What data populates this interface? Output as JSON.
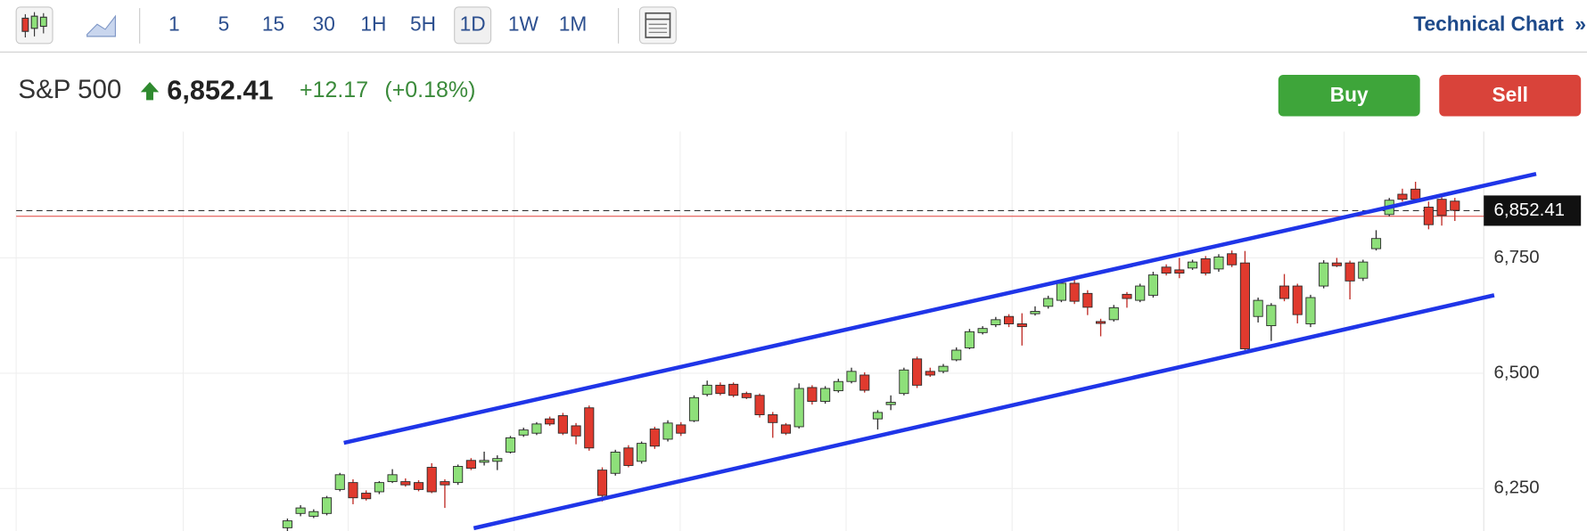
{
  "toolbar": {
    "intervals": [
      "1",
      "5",
      "15",
      "30",
      "1H",
      "5H",
      "1D",
      "1W",
      "1M"
    ],
    "active_interval": "1D",
    "right_link": "Technical Chart",
    "right_arrow": "»"
  },
  "header": {
    "symbol": "S&P 500",
    "price": "6,852.41",
    "change": "+12.17",
    "change_pct": "(+0.18%)",
    "buy": "Buy",
    "sell": "Sell"
  },
  "chart_data": {
    "type": "candlestick",
    "up_color": "#8ee07a",
    "down_color": "#e03a2e",
    "candles": [
      [
        6165,
        6185,
        6158,
        6180
      ],
      [
        6196,
        6214,
        6190,
        6208
      ],
      [
        6190,
        6205,
        6186,
        6200
      ],
      [
        6196,
        6234,
        6192,
        6230
      ],
      [
        6248,
        6284,
        6244,
        6280
      ],
      [
        6263,
        6270,
        6216,
        6230
      ],
      [
        6240,
        6246,
        6224,
        6228
      ],
      [
        6243,
        6266,
        6238,
        6263
      ],
      [
        6265,
        6292,
        6262,
        6280
      ],
      [
        6265,
        6272,
        6254,
        6258
      ],
      [
        6263,
        6268,
        6244,
        6248
      ],
      [
        6296,
        6305,
        6240,
        6243
      ],
      [
        6265,
        6270,
        6208,
        6258
      ],
      [
        6263,
        6302,
        6258,
        6298
      ],
      [
        6311,
        6316,
        6290,
        6294
      ],
      [
        6307,
        6330,
        6300,
        6311
      ],
      [
        6309,
        6322,
        6290,
        6315
      ],
      [
        6329,
        6364,
        6326,
        6360
      ],
      [
        6366,
        6382,
        6362,
        6377
      ],
      [
        6370,
        6394,
        6366,
        6390
      ],
      [
        6401,
        6406,
        6386,
        6390
      ],
      [
        6408,
        6414,
        6366,
        6370
      ],
      [
        6386,
        6392,
        6346,
        6364
      ],
      [
        6425,
        6430,
        6332,
        6338
      ],
      [
        6290,
        6296,
        6222,
        6235
      ],
      [
        6283,
        6334,
        6278,
        6329
      ],
      [
        6338,
        6344,
        6296,
        6300
      ],
      [
        6309,
        6352,
        6304,
        6348
      ],
      [
        6379,
        6384,
        6336,
        6342
      ],
      [
        6357,
        6398,
        6352,
        6392
      ],
      [
        6388,
        6394,
        6364,
        6370
      ],
      [
        6397,
        6452,
        6394,
        6447
      ],
      [
        6454,
        6484,
        6450,
        6474
      ],
      [
        6474,
        6480,
        6452,
        6456
      ],
      [
        6476,
        6480,
        6448,
        6452
      ],
      [
        6456,
        6460,
        6444,
        6447
      ],
      [
        6452,
        6456,
        6404,
        6410
      ],
      [
        6410,
        6416,
        6360,
        6393
      ],
      [
        6388,
        6392,
        6366,
        6370
      ],
      [
        6384,
        6478,
        6380,
        6467
      ],
      [
        6469,
        6474,
        6432,
        6439
      ],
      [
        6439,
        6472,
        6434,
        6467
      ],
      [
        6462,
        6488,
        6458,
        6482
      ],
      [
        6482,
        6512,
        6478,
        6504
      ],
      [
        6496,
        6502,
        6458,
        6463
      ],
      [
        6401,
        6420,
        6378,
        6415
      ],
      [
        6432,
        6452,
        6420,
        6437
      ],
      [
        6456,
        6512,
        6452,
        6507
      ],
      [
        6531,
        6536,
        6468,
        6474
      ],
      [
        6504,
        6512,
        6492,
        6496
      ],
      [
        6504,
        6520,
        6500,
        6515
      ],
      [
        6529,
        6556,
        6526,
        6550
      ],
      [
        6555,
        6596,
        6552,
        6590
      ],
      [
        6588,
        6602,
        6584,
        6597
      ],
      [
        6605,
        6622,
        6600,
        6616
      ],
      [
        6623,
        6628,
        6600,
        6607
      ],
      [
        6607,
        6630,
        6560,
        6601
      ],
      [
        6629,
        6645,
        6625,
        6634
      ],
      [
        6645,
        6668,
        6640,
        6662
      ],
      [
        6658,
        6702,
        6654,
        6695
      ],
      [
        6695,
        6704,
        6650,
        6656
      ],
      [
        6673,
        6680,
        6626,
        6643
      ],
      [
        6612,
        6618,
        6580,
        6608
      ],
      [
        6616,
        6648,
        6612,
        6642
      ],
      [
        6671,
        6676,
        6642,
        6662
      ],
      [
        6658,
        6694,
        6654,
        6689
      ],
      [
        6669,
        6720,
        6664,
        6713
      ],
      [
        6730,
        6736,
        6712,
        6717
      ],
      [
        6724,
        6750,
        6706,
        6717
      ],
      [
        6728,
        6746,
        6724,
        6741
      ],
      [
        6748,
        6754,
        6712,
        6717
      ],
      [
        6726,
        6758,
        6720,
        6752
      ],
      [
        6759,
        6766,
        6730,
        6735
      ],
      [
        6739,
        6765,
        6550,
        6553
      ],
      [
        6623,
        6664,
        6610,
        6658
      ],
      [
        6603,
        6652,
        6570,
        6647
      ],
      [
        6689,
        6715,
        6656,
        6662
      ],
      [
        6689,
        6694,
        6608,
        6627
      ],
      [
        6607,
        6670,
        6600,
        6664
      ],
      [
        6689,
        6745,
        6684,
        6739
      ],
      [
        6739,
        6750,
        6730,
        6733
      ],
      [
        6739,
        6744,
        6660,
        6700
      ],
      [
        6706,
        6746,
        6700,
        6741
      ],
      [
        6770,
        6810,
        6766,
        6792
      ],
      [
        6844,
        6880,
        6840,
        6875
      ],
      [
        6888,
        6900,
        6872,
        6877
      ],
      [
        6899,
        6915,
        6870,
        6877
      ],
      [
        6860,
        6872,
        6812,
        6822
      ],
      [
        6877,
        6884,
        6820,
        6842
      ],
      [
        6873,
        6880,
        6830,
        6853
      ]
    ],
    "trendlines": [
      {
        "color": "#1f35e8",
        "x": [
          4.3,
          95.2
        ],
        "values": [
          6349,
          6932
        ]
      },
      {
        "color": "#1f35e8",
        "x": [
          14.2,
          92.0
        ],
        "values": [
          6164,
          6669
        ]
      }
    ],
    "last_price": {
      "value": 6852.41,
      "label": "6,852.41"
    },
    "prev_close": 6840.24,
    "ylim": [
      6158,
      7024
    ],
    "yticks": [
      {
        "value": 6250,
        "label": "6,250"
      },
      {
        "value": 6500,
        "label": "6,500"
      },
      {
        "value": 6750,
        "label": "6,750"
      }
    ],
    "grid": true
  }
}
